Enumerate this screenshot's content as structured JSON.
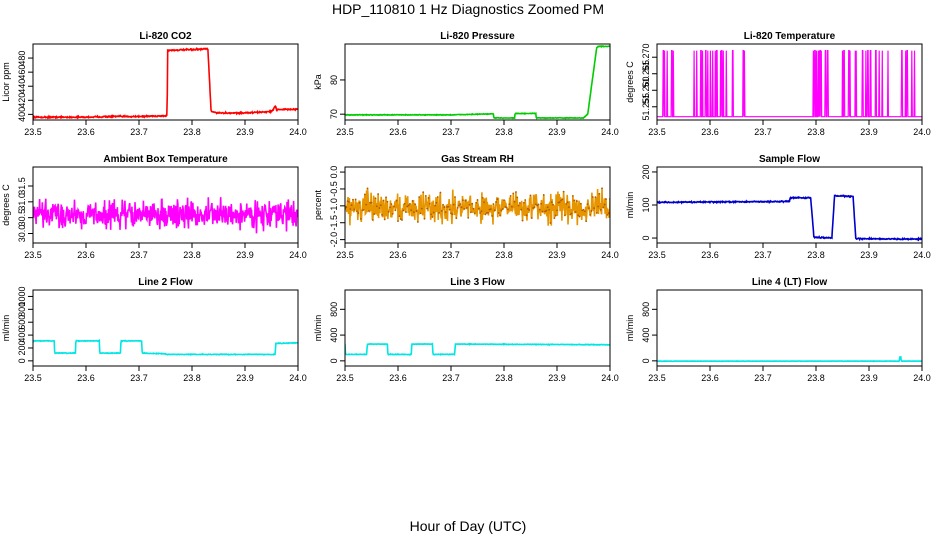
{
  "figure": {
    "title": "HDP_110810  1 Hz Diagnostics Zoomed PM",
    "xlabel": "Hour of Day (UTC)"
  },
  "chart_data": [
    {
      "type": "line",
      "title": "Li-820 CO2",
      "ylabel": "Licor ppm",
      "color": "#ff0000",
      "xlim": [
        23.5,
        24.0
      ],
      "ylim": [
        392,
        500
      ],
      "xticks": [
        "23.5",
        "23.6",
        "23.7",
        "23.8",
        "23.9",
        "24.0"
      ],
      "yticks": [
        {
          "v": 400,
          "label": "400"
        },
        {
          "v": 420,
          "label": "420"
        },
        {
          "v": 440,
          "label": "440"
        },
        {
          "v": 460,
          "label": "460"
        },
        {
          "v": 480,
          "label": "480"
        }
      ],
      "series": [
        {
          "x": [
            23.5,
            23.55,
            23.6,
            23.65,
            23.7,
            23.753,
            23.754,
            23.8,
            23.83,
            23.836,
            23.85,
            23.9,
            23.95,
            23.958,
            23.96,
            23.961,
            24.0
          ],
          "y": [
            396,
            396,
            396,
            397,
            397,
            398,
            491,
            492,
            493,
            404,
            402,
            402,
            404,
            412,
            405,
            407,
            407
          ],
          "noise": 0.8
        }
      ]
    },
    {
      "type": "line",
      "title": "Li-820 Pressure",
      "ylabel": "kPa",
      "color": "#00cc00",
      "xlim": [
        23.5,
        24.0
      ],
      "ylim": [
        68.3,
        90.5
      ],
      "xticks": [
        "23.5",
        "23.6",
        "23.7",
        "23.8",
        "23.9",
        "24.0"
      ],
      "yticks": [
        {
          "v": 70,
          "label": "70"
        },
        {
          "v": 80,
          "label": "80"
        }
      ],
      "series": [
        {
          "x": [
            23.5,
            23.6,
            23.7,
            23.78,
            23.781,
            23.82,
            23.821,
            23.86,
            23.861,
            23.92,
            23.95,
            23.958,
            23.975,
            23.978,
            24.0
          ],
          "y": [
            69.8,
            69.8,
            69.8,
            70.1,
            68.9,
            68.9,
            70.2,
            70.2,
            68.9,
            68.9,
            68.9,
            70.0,
            89.5,
            89.8,
            89.8
          ],
          "noise": 0.08
        }
      ]
    },
    {
      "type": "line",
      "title": "Li-820 Temperature",
      "ylabel": "degrees C",
      "color": "#ff00ff",
      "xlim": [
        23.5,
        24.0
      ],
      "ylim": [
        51.251,
        51.274
      ],
      "xticks": [
        "23.5",
        "23.6",
        "23.7",
        "23.8",
        "23.9",
        "24.0"
      ],
      "yticks": [
        {
          "v": 51.255,
          "label": "51.255"
        },
        {
          "v": 51.26,
          "label": "51.260"
        },
        {
          "v": 51.265,
          "label": "51.265"
        },
        {
          "v": 51.27,
          "label": "51.270"
        }
      ],
      "base": 51.252,
      "high": 51.272,
      "spikes": [
        23.512,
        23.514,
        23.519,
        23.528,
        23.531,
        23.57,
        23.575,
        23.583,
        23.586,
        23.592,
        23.596,
        23.601,
        23.605,
        23.61,
        23.613,
        23.62,
        23.622,
        23.625,
        23.631,
        23.643,
        23.663,
        23.665,
        23.795,
        23.798,
        23.801,
        23.804,
        23.806,
        23.808,
        23.81,
        23.818,
        23.822,
        23.85,
        23.853,
        23.862,
        23.864,
        23.874,
        23.876,
        23.888,
        23.894,
        23.898,
        23.903,
        23.913,
        23.919,
        23.925,
        23.936,
        23.962,
        23.969,
        23.972,
        23.981,
        23.986
      ]
    },
    {
      "type": "line",
      "title": "Ambient Box Temperature",
      "ylabel": "degrees C",
      "color": "#ff00ff",
      "xlim": [
        23.5,
        24.0
      ],
      "ylim": [
        29.7,
        32.1
      ],
      "xticks": [
        "23.5",
        "23.6",
        "23.7",
        "23.8",
        "23.9",
        "24.0"
      ],
      "yticks": [
        {
          "v": 30.0,
          "label": "30.0"
        },
        {
          "v": 30.5,
          "label": "30.5"
        },
        {
          "v": 31.0,
          "label": "31.0"
        },
        {
          "v": 31.5,
          "label": "31.5"
        }
      ],
      "series": [
        {
          "x": [
            23.5,
            24.0
          ],
          "y": [
            30.6,
            30.6
          ],
          "noise": 0.35
        }
      ]
    },
    {
      "type": "line",
      "title": "Gas Stream RH",
      "ylabel": "percent",
      "color": "#e69500",
      "xlim": [
        23.5,
        24.0
      ],
      "ylim": [
        -2.1,
        0.15
      ],
      "xticks": [
        "23.5",
        "23.6",
        "23.7",
        "23.8",
        "23.9",
        "24.0"
      ],
      "yticks": [
        {
          "v": -2.0,
          "label": "-2.0"
        },
        {
          "v": -1.5,
          "label": "-1.5"
        },
        {
          "v": -1.0,
          "label": "-1.0"
        },
        {
          "v": -0.5,
          "label": "-0.5"
        },
        {
          "v": 0.0,
          "label": "0.0"
        }
      ],
      "series": [
        {
          "x": [
            23.5,
            24.0
          ],
          "y": [
            -1.05,
            -1.05
          ],
          "noise": 0.35,
          "dots": true
        }
      ]
    },
    {
      "type": "line",
      "title": "Sample Flow",
      "ylabel": "ml/min",
      "color": "#0000cc",
      "xlim": [
        23.5,
        24.0
      ],
      "ylim": [
        -15,
        215
      ],
      "xticks": [
        "23.5",
        "23.6",
        "23.7",
        "23.8",
        "23.9",
        "24.0"
      ],
      "yticks": [
        {
          "v": 0,
          "label": "0"
        },
        {
          "v": 100,
          "label": "100"
        },
        {
          "v": 200,
          "label": "200"
        }
      ],
      "series": [
        {
          "x": [
            23.5,
            23.6,
            23.7,
            23.75,
            23.751,
            23.79,
            23.796,
            23.83,
            23.835,
            23.87,
            23.875,
            23.95,
            24.0
          ],
          "y": [
            108,
            109,
            110,
            111,
            122,
            122,
            2,
            1,
            128,
            126,
            -2,
            -3,
            -3
          ],
          "noise": 1.5
        }
      ]
    },
    {
      "type": "line",
      "title": "Line 2 Flow",
      "ylabel": "ml/min",
      "color": "#00e5e5",
      "xlim": [
        23.5,
        24.0
      ],
      "ylim": [
        -80,
        1100
      ],
      "xticks": [
        "23.5",
        "23.6",
        "23.7",
        "23.8",
        "23.9",
        "24.0"
      ],
      "yticks": [
        {
          "v": 0,
          "label": "0"
        },
        {
          "v": 200,
          "label": "200"
        },
        {
          "v": 400,
          "label": "400"
        },
        {
          "v": 600,
          "label": "600"
        },
        {
          "v": 800,
          "label": "800"
        },
        {
          "v": 1000,
          "label": "1000"
        }
      ],
      "series": [
        {
          "x": [
            23.5,
            23.501,
            23.54,
            23.541,
            23.58,
            23.581,
            23.625,
            23.626,
            23.665,
            23.666,
            23.705,
            23.706,
            23.75,
            23.751,
            23.957,
            23.958,
            24.0
          ],
          "y": [
            280,
            310,
            310,
            120,
            120,
            310,
            310,
            120,
            120,
            310,
            310,
            120,
            110,
            100,
            100,
            270,
            280
          ],
          "noise": 4
        }
      ]
    },
    {
      "type": "line",
      "title": "Line 3 Flow",
      "ylabel": "ml/min",
      "color": "#00e5e5",
      "xlim": [
        23.5,
        24.0
      ],
      "ylim": [
        -80,
        1100
      ],
      "xticks": [
        "23.5",
        "23.6",
        "23.7",
        "23.8",
        "23.9",
        "24.0"
      ],
      "yticks": [
        {
          "v": 0,
          "label": "0"
        },
        {
          "v": 400,
          "label": "400"
        },
        {
          "v": 800,
          "label": "800"
        }
      ],
      "series": [
        {
          "x": [
            23.5,
            23.501,
            23.541,
            23.542,
            23.58,
            23.581,
            23.625,
            23.626,
            23.665,
            23.666,
            23.707,
            23.708,
            24.0
          ],
          "y": [
            260,
            100,
            100,
            260,
            260,
            100,
            100,
            260,
            260,
            100,
            100,
            260,
            250
          ],
          "noise": 4
        }
      ]
    },
    {
      "type": "line",
      "title": "Line 4 (LT) Flow",
      "ylabel": "ml/min",
      "color": "#00e5e5",
      "xlim": [
        23.5,
        24.0
      ],
      "ylim": [
        -80,
        1100
      ],
      "xticks": [
        "23.5",
        "23.6",
        "23.7",
        "23.8",
        "23.9",
        "24.0"
      ],
      "yticks": [
        {
          "v": 0,
          "label": "0"
        },
        {
          "v": 400,
          "label": "400"
        },
        {
          "v": 800,
          "label": "800"
        }
      ],
      "series": [
        {
          "x": [
            23.5,
            23.957,
            23.958,
            23.96,
            23.961,
            24.0
          ],
          "y": [
            -5,
            -5,
            60,
            60,
            -5,
            -5
          ],
          "noise": 2
        }
      ]
    }
  ]
}
